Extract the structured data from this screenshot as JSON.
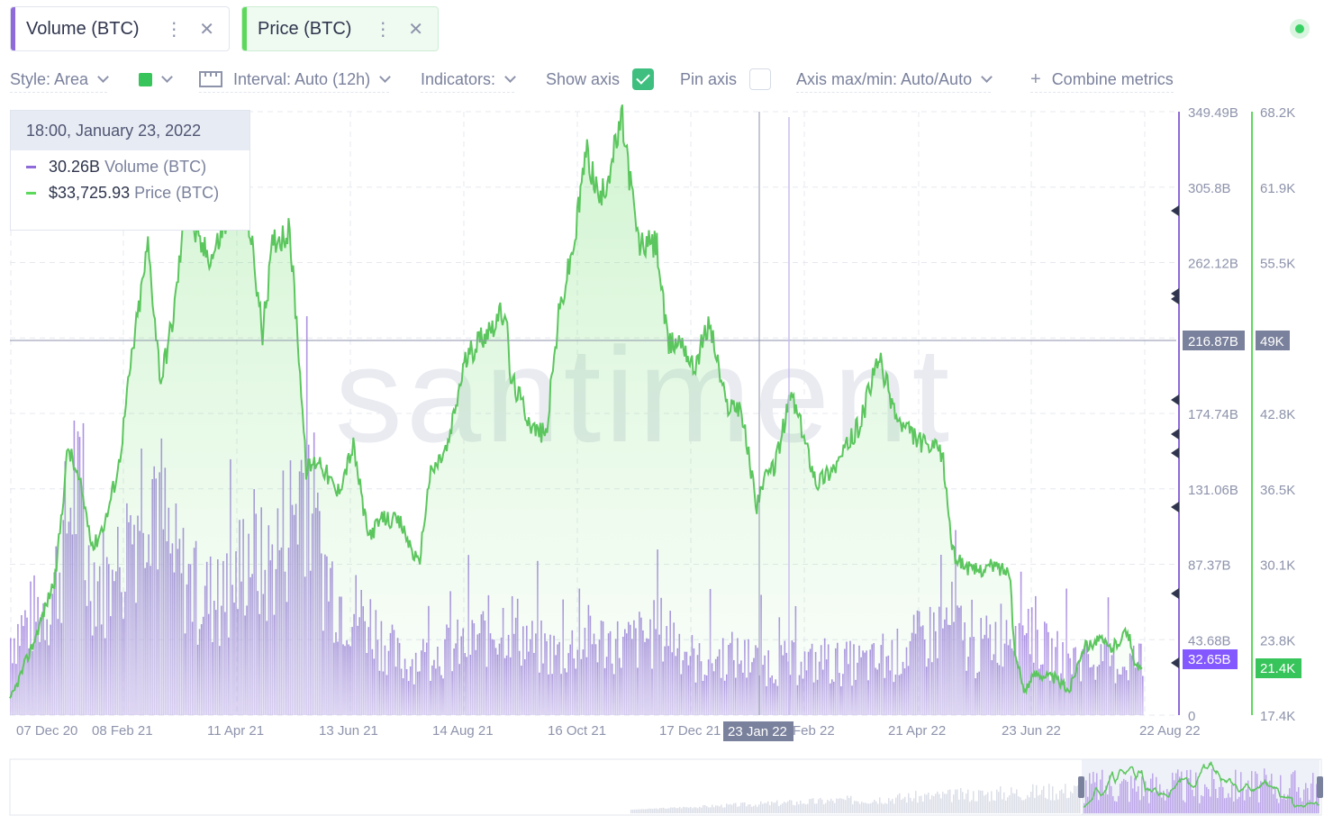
{
  "metrics": [
    {
      "label": "Volume (BTC)",
      "color": "#8358ff"
    },
    {
      "label": "Price (BTC)",
      "color": "#5cd95b"
    }
  ],
  "toolbar": {
    "style": "Style: Area",
    "interval": "Interval: Auto (12h)",
    "indicators": "Indicators:",
    "show_axis": "Show axis",
    "show_axis_checked": true,
    "pin_axis": "Pin axis",
    "pin_axis_checked": false,
    "axis_maxmin": "Axis max/min: Auto/Auto",
    "combine": "Combine metrics"
  },
  "tooltip": {
    "date": "18:00, January 23, 2022",
    "volume_value": "30.26B",
    "volume_name": "Volume (BTC)",
    "price_value": "$33,725.93",
    "price_name": "Price (BTC)"
  },
  "watermark": "santiment",
  "chart_data": {
    "type": "area",
    "x_ticks": [
      "07 Dec 20",
      "08 Feb 21",
      "11 Apr 21",
      "13 Jun 21",
      "14 Aug 21",
      "16 Oct 21",
      "17 Dec 21",
      "Feb 22",
      "21 Apr 22",
      "23 Jun 22",
      "22 Aug 22"
    ],
    "cursor_date_label": "23 Jan 22",
    "volume_axis_ticks": [
      "349.49B",
      "305.8B",
      "262.12B",
      "216.87B",
      "174.74B",
      "131.06B",
      "87.37B",
      "43.68B",
      "0"
    ],
    "price_axis_ticks": [
      "68.2K",
      "61.9K",
      "55.5K",
      "49K",
      "42.8K",
      "36.5K",
      "30.1K",
      "23.8K",
      "17.4K"
    ],
    "volume_ylim": [
      0,
      349.49
    ],
    "price_ylim": [
      17.4,
      68.2
    ],
    "crosshair_volume": "216.87B",
    "crosshair_price": "49K",
    "last_volume": "32.65B",
    "last_price": "21.4K",
    "series": [
      {
        "name": "Price (BTC)",
        "unit": "K USD",
        "points": [
          [
            "2020-12-07",
            18.5
          ],
          [
            "2020-12-20",
            23.5
          ],
          [
            "2021-01-01",
            29.0
          ],
          [
            "2021-01-08",
            40.0
          ],
          [
            "2021-01-15",
            36.5
          ],
          [
            "2021-01-22",
            31.5
          ],
          [
            "2021-01-29",
            34.0
          ],
          [
            "2021-02-05",
            38.5
          ],
          [
            "2021-02-12",
            47.5
          ],
          [
            "2021-02-21",
            57.0
          ],
          [
            "2021-02-28",
            45.5
          ],
          [
            "2021-03-07",
            51.0
          ],
          [
            "2021-03-14",
            60.5
          ],
          [
            "2021-03-21",
            57.0
          ],
          [
            "2021-03-28",
            56.0
          ],
          [
            "2021-04-04",
            58.5
          ],
          [
            "2021-04-14",
            63.0
          ],
          [
            "2021-04-20",
            56.0
          ],
          [
            "2021-04-25",
            49.5
          ],
          [
            "2021-05-01",
            57.5
          ],
          [
            "2021-05-10",
            58.0
          ],
          [
            "2021-05-15",
            48.0
          ],
          [
            "2021-05-19",
            38.0
          ],
          [
            "2021-05-26",
            39.0
          ],
          [
            "2021-06-05",
            36.0
          ],
          [
            "2021-06-14",
            40.0
          ],
          [
            "2021-06-22",
            32.5
          ],
          [
            "2021-07-01",
            34.0
          ],
          [
            "2021-07-10",
            33.5
          ],
          [
            "2021-07-20",
            30.0
          ],
          [
            "2021-07-26",
            37.5
          ],
          [
            "2021-08-05",
            40.0
          ],
          [
            "2021-08-14",
            47.0
          ],
          [
            "2021-08-22",
            49.0
          ],
          [
            "2021-09-06",
            51.5
          ],
          [
            "2021-09-08",
            46.0
          ],
          [
            "2021-09-21",
            41.5
          ],
          [
            "2021-09-28",
            41.0
          ],
          [
            "2021-10-05",
            51.0
          ],
          [
            "2021-10-14",
            57.5
          ],
          [
            "2021-10-20",
            65.0
          ],
          [
            "2021-10-28",
            60.5
          ],
          [
            "2021-11-09",
            67.5
          ],
          [
            "2021-11-18",
            57.0
          ],
          [
            "2021-11-28",
            57.0
          ],
          [
            "2021-12-04",
            48.5
          ],
          [
            "2021-12-12",
            49.0
          ],
          [
            "2021-12-18",
            46.5
          ],
          [
            "2021-12-27",
            50.5
          ],
          [
            "2022-01-05",
            43.5
          ],
          [
            "2022-01-13",
            43.5
          ],
          [
            "2022-01-22",
            35.0
          ],
          [
            "2022-01-24",
            36.5
          ],
          [
            "2022-02-01",
            38.5
          ],
          [
            "2022-02-10",
            44.5
          ],
          [
            "2022-02-24",
            37.0
          ],
          [
            "2022-03-07",
            38.5
          ],
          [
            "2022-03-20",
            42.0
          ],
          [
            "2022-03-30",
            47.5
          ],
          [
            "2022-04-10",
            42.0
          ],
          [
            "2022-04-25",
            40.0
          ],
          [
            "2022-05-04",
            39.5
          ],
          [
            "2022-05-10",
            31.0
          ],
          [
            "2022-05-20",
            29.5
          ],
          [
            "2022-06-01",
            30.0
          ],
          [
            "2022-06-10",
            29.5
          ],
          [
            "2022-06-13",
            22.5
          ],
          [
            "2022-06-18",
            19.5
          ],
          [
            "2022-06-25",
            21.0
          ],
          [
            "2022-07-05",
            20.5
          ],
          [
            "2022-07-13",
            19.5
          ],
          [
            "2022-07-20",
            23.0
          ],
          [
            "2022-07-29",
            23.8
          ],
          [
            "2022-08-05",
            23.0
          ],
          [
            "2022-08-14",
            24.5
          ],
          [
            "2022-08-19",
            21.3
          ],
          [
            "2022-08-22",
            21.4
          ]
        ]
      },
      {
        "name": "Volume (BTC)",
        "unit": "B",
        "points": [
          [
            "2020-12-07",
            45
          ],
          [
            "2020-12-28",
            65
          ],
          [
            "2021-01-04",
            90
          ],
          [
            "2021-01-11",
            140
          ],
          [
            "2021-01-18",
            85
          ],
          [
            "2021-02-01",
            75
          ],
          [
            "2021-02-10",
            100
          ],
          [
            "2021-02-22",
            150
          ],
          [
            "2021-03-05",
            90
          ],
          [
            "2021-03-20",
            70
          ],
          [
            "2021-04-05",
            65
          ],
          [
            "2021-04-18",
            100
          ],
          [
            "2021-04-26",
            80
          ],
          [
            "2021-05-12",
            120
          ],
          [
            "2021-05-19",
            150
          ],
          [
            "2021-05-26",
            90
          ],
          [
            "2021-06-08",
            65
          ],
          [
            "2021-06-22",
            55
          ],
          [
            "2021-07-10",
            30
          ],
          [
            "2021-07-26",
            35
          ],
          [
            "2021-08-14",
            40
          ],
          [
            "2021-09-07",
            55
          ],
          [
            "2021-09-20",
            40
          ],
          [
            "2021-10-05",
            35
          ],
          [
            "2021-10-20",
            45
          ],
          [
            "2021-11-10",
            40
          ],
          [
            "2021-12-04",
            50
          ],
          [
            "2021-12-20",
            30
          ],
          [
            "2022-01-05",
            35
          ],
          [
            "2022-01-23",
            30.26
          ],
          [
            "2022-02-10",
            30
          ],
          [
            "2022-03-01",
            30
          ],
          [
            "2022-04-01",
            30
          ],
          [
            "2022-05-10",
            55
          ],
          [
            "2022-05-20",
            35
          ],
          [
            "2022-06-13",
            55
          ],
          [
            "2022-06-18",
            60
          ],
          [
            "2022-07-01",
            35
          ],
          [
            "2022-07-20",
            32
          ],
          [
            "2022-08-10",
            30
          ],
          [
            "2022-08-22",
            32.65
          ]
        ]
      }
    ]
  }
}
